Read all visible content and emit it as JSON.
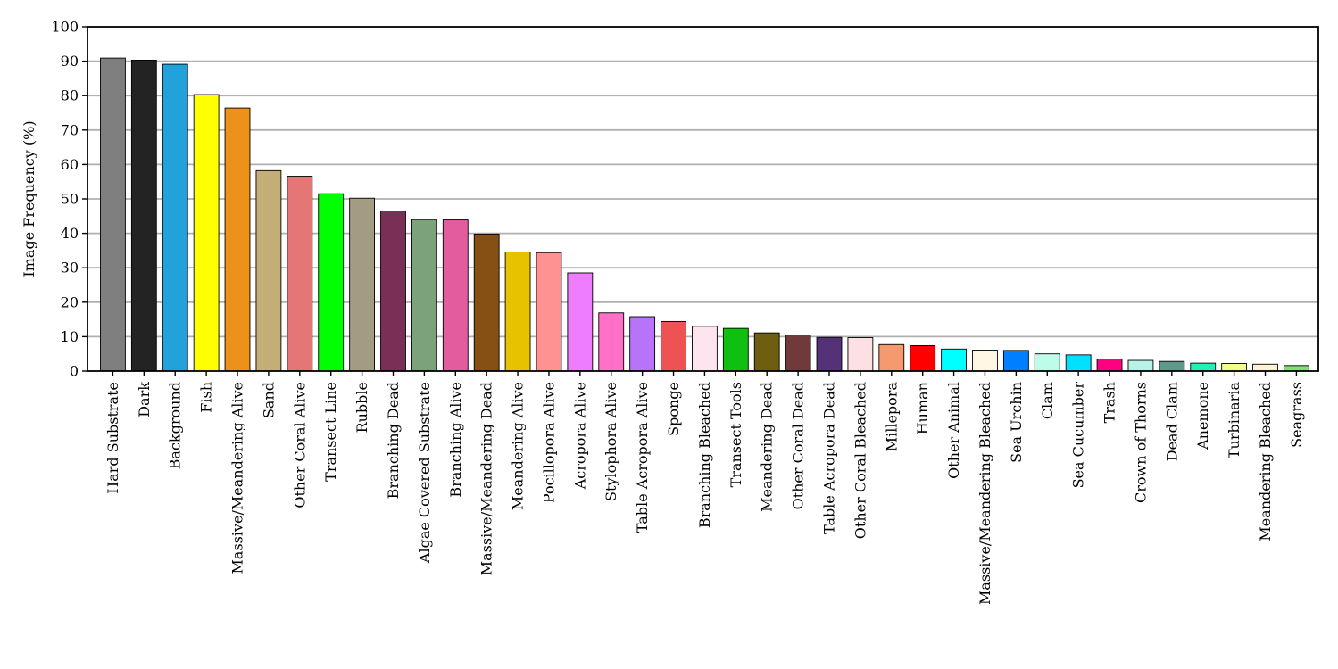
{
  "chart_data": {
    "type": "bar",
    "title": "",
    "xlabel": "",
    "ylabel": "Image Frequency (%)",
    "ylim": [
      0,
      100
    ],
    "yticks": [
      0,
      10,
      20,
      30,
      40,
      50,
      60,
      70,
      80,
      90,
      100
    ],
    "grid": "horizontal",
    "categories": [
      "Hard Substrate",
      "Dark",
      "Background",
      "Fish",
      "Massive/Meandering Alive",
      "Sand",
      "Other Coral Alive",
      "Transect Line",
      "Rubble",
      "Branching Dead",
      "Algae Covered Substrate",
      "Branching Alive",
      "Massive/Meandering Dead",
      "Meandering Alive",
      "Pocillopora Alive",
      "Acropora Alive",
      "Stylophora Alive",
      "Table Acropora Alive",
      "Sponge",
      "Branching Bleached",
      "Transect Tools",
      "Meandering Dead",
      "Other Coral Dead",
      "Table Acropora Dead",
      "Other Coral Bleached",
      "Millepora",
      "Human",
      "Other Animal",
      "Massive/Meandering Bleached",
      "Sea Urchin",
      "Clam",
      "Sea Cucumber",
      "Trash",
      "Crown of Thorns",
      "Dead Clam",
      "Anemone",
      "Turbinaria",
      "Meandering Bleached",
      "Seagrass"
    ],
    "values": [
      90.9,
      90.3,
      89.1,
      80.3,
      76.4,
      58.2,
      56.6,
      51.5,
      50.2,
      46.5,
      44.0,
      43.9,
      39.8,
      34.6,
      34.4,
      28.5,
      16.9,
      15.8,
      14.4,
      13.0,
      12.4,
      11.1,
      10.5,
      9.8,
      9.7,
      7.7,
      7.4,
      6.4,
      6.1,
      6.0,
      5.0,
      4.7,
      3.5,
      3.1,
      2.8,
      2.3,
      2.2,
      2.0,
      1.6
    ],
    "colors": [
      "#7f7f7f",
      "#232323",
      "#22a2db",
      "#ffff00",
      "#ec9119",
      "#c4ae78",
      "#e47676",
      "#00ff00",
      "#a39b82",
      "#7a2f57",
      "#7ba27a",
      "#e35d9e",
      "#864f14",
      "#e6c200",
      "#fe9191",
      "#ef7dff",
      "#ff70c6",
      "#b874f8",
      "#ee5252",
      "#fde4ef",
      "#10c010",
      "#6e5f10",
      "#713a3a",
      "#553278",
      "#fde0e4",
      "#f49a6e",
      "#ff0000",
      "#00ffff",
      "#fff7e3",
      "#0080ff",
      "#bdfce9",
      "#00e0ff",
      "#ff0080",
      "#b8f1e6",
      "#5e998a",
      "#1ef2b5",
      "#f3ff8c",
      "#fff1d6",
      "#7fe074"
    ]
  }
}
